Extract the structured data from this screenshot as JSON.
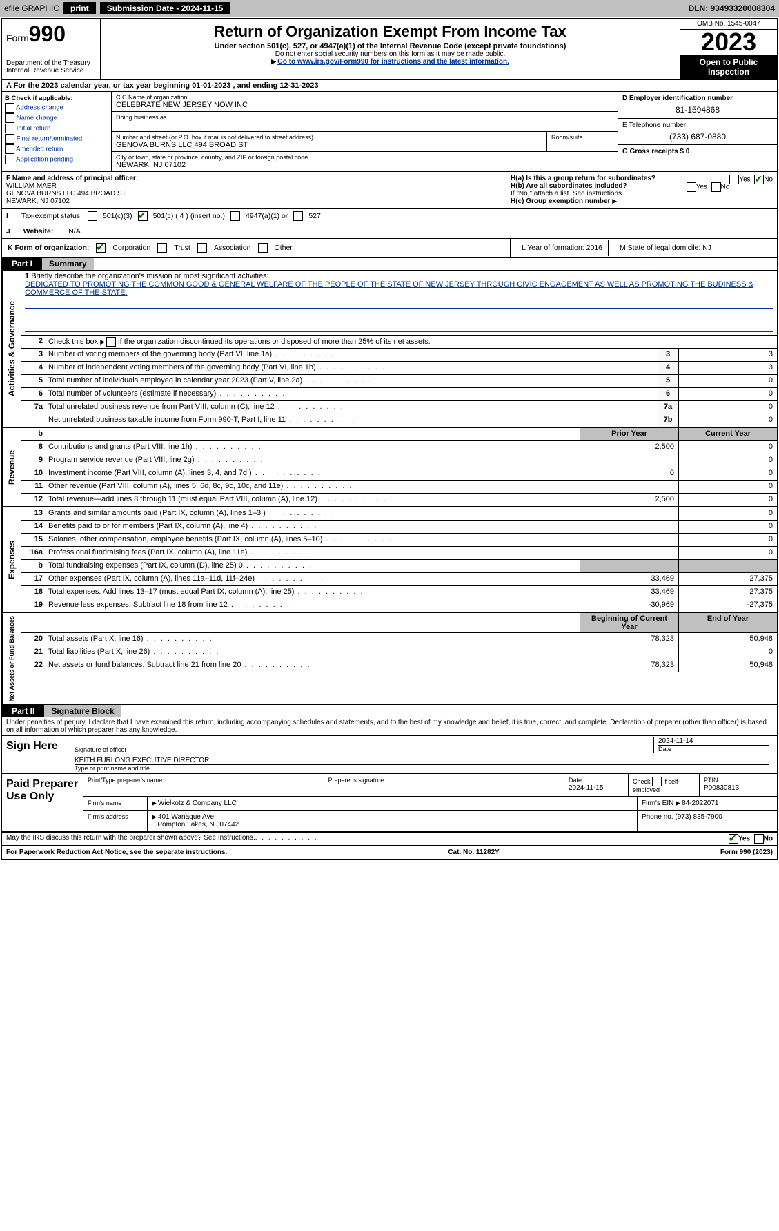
{
  "topbar": {
    "efile": "efile GRAPHIC",
    "print": "print",
    "submission": "Submission Date - 2024-11-15",
    "dln": "DLN: 93493320008304"
  },
  "header": {
    "form_label": "Form",
    "form_number": "990",
    "dept1": "Department of the Treasury",
    "dept2": "Internal Revenue Service",
    "title": "Return of Organization Exempt From Income Tax",
    "subtitle": "Under section 501(c), 527, or 4947(a)(1) of the Internal Revenue Code (except private foundations)",
    "warn": "Do not enter social security numbers on this form as it may be made public.",
    "goto": "Go to www.irs.gov/Form990 for instructions and the latest information.",
    "omb": "OMB No. 1545-0047",
    "year": "2023",
    "open": "Open to Public Inspection"
  },
  "row_a": "A For the 2023 calendar year, or tax year beginning 01-01-2023   , and ending 12-31-2023",
  "box_b": {
    "title": "B Check if applicable:",
    "opts": [
      "Address change",
      "Name change",
      "Initial return",
      "Final return/terminated",
      "Amended return",
      "Application pending"
    ]
  },
  "box_c": {
    "name_lbl": "C Name of organization",
    "name_val": "CELEBRATE NEW JERSEY NOW INC",
    "dba_lbl": "Doing business as",
    "addr_lbl": "Number and street (or P.O. box if mail is not delivered to street address)",
    "addr_val": "GENOVA BURNS LLC 494 BROAD ST",
    "room_lbl": "Room/suite",
    "city_lbl": "City or town, state or province, country, and ZIP or foreign postal code",
    "city_val": "NEWARK, NJ  07102"
  },
  "box_d": {
    "lbl": "D Employer identification number",
    "val": "81-1594868"
  },
  "box_e": {
    "lbl": "E Telephone number",
    "val": "(733) 687-0880"
  },
  "box_g": {
    "lbl": "G Gross receipts $ 0"
  },
  "box_f": {
    "lbl": "F Name and address of principal officer:",
    "l1": "WILLIAM MAER",
    "l2": "GENOVA BURNS LLC 494 BROAD ST",
    "l3": "NEWARK, NJ  07102"
  },
  "box_h": {
    "a": "H(a) Is this a group return for subordinates?",
    "b": "H(b) Are all subordinates included?",
    "note": "If \"No,\" attach a list. See instructions.",
    "c": "H(c) Group exemption number",
    "yes": "Yes",
    "no": "No"
  },
  "row_i": {
    "lbl": "Tax-exempt status:",
    "o1": "501(c)(3)",
    "o2": "501(c) ( 4 ) (insert no.)",
    "o3": "4947(a)(1) or",
    "o4": "527"
  },
  "row_j": {
    "lbl": "Website:",
    "val": "N/A"
  },
  "row_k": {
    "lbl": "K Form of organization:",
    "o1": "Corporation",
    "o2": "Trust",
    "o3": "Association",
    "o4": "Other"
  },
  "row_l": "L Year of formation: 2016",
  "row_m": "M State of legal domicile: NJ",
  "part1": {
    "label": "Part I",
    "title": "Summary"
  },
  "mission": {
    "q": "Briefly describe the organization's mission or most significant activities:",
    "text": "DEDICATED TO PROMOTING THE COMMON GOOD & GENERAL WELFARE OF THE PEOPLE OF THE STATE OF NEW JERSEY THROUGH CIVIC ENGAGEMENT AS WELL AS PROMOTING THE BUDINESS & COMMERCE OF THE STATE."
  },
  "line2": "Check this box      if the organization discontinued its operations or disposed of more than 25% of its net assets.",
  "gov_lines": [
    {
      "n": "3",
      "d": "Number of voting members of the governing body (Part VI, line 1a)",
      "b": "3",
      "v": "3"
    },
    {
      "n": "4",
      "d": "Number of independent voting members of the governing body (Part VI, line 1b)",
      "b": "4",
      "v": "3"
    },
    {
      "n": "5",
      "d": "Total number of individuals employed in calendar year 2023 (Part V, line 2a)",
      "b": "5",
      "v": "0"
    },
    {
      "n": "6",
      "d": "Total number of volunteers (estimate if necessary)",
      "b": "6",
      "v": "0"
    },
    {
      "n": "7a",
      "d": "Total unrelated business revenue from Part VIII, column (C), line 12",
      "b": "7a",
      "v": "0"
    },
    {
      "n": "",
      "d": "Net unrelated business taxable income from Form 990-T, Part I, line 11",
      "b": "7b",
      "v": "0"
    }
  ],
  "col_headers": {
    "b": "b",
    "prior": "Prior Year",
    "current": "Current Year"
  },
  "rev_lines": [
    {
      "n": "8",
      "d": "Contributions and grants (Part VIII, line 1h)",
      "p": "2,500",
      "c": "0"
    },
    {
      "n": "9",
      "d": "Program service revenue (Part VIII, line 2g)",
      "p": "",
      "c": "0"
    },
    {
      "n": "10",
      "d": "Investment income (Part VIII, column (A), lines 3, 4, and 7d )",
      "p": "0",
      "c": "0"
    },
    {
      "n": "11",
      "d": "Other revenue (Part VIII, column (A), lines 5, 6d, 8c, 9c, 10c, and 11e)",
      "p": "",
      "c": "0"
    },
    {
      "n": "12",
      "d": "Total revenue—add lines 8 through 11 (must equal Part VIII, column (A), line 12)",
      "p": "2,500",
      "c": "0"
    }
  ],
  "exp_lines": [
    {
      "n": "13",
      "d": "Grants and similar amounts paid (Part IX, column (A), lines 1–3 )",
      "p": "",
      "c": "0"
    },
    {
      "n": "14",
      "d": "Benefits paid to or for members (Part IX, column (A), line 4)",
      "p": "",
      "c": "0"
    },
    {
      "n": "15",
      "d": "Salaries, other compensation, employee benefits (Part IX, column (A), lines 5–10)",
      "p": "",
      "c": "0"
    },
    {
      "n": "16a",
      "d": "Professional fundraising fees (Part IX, column (A), line 11e)",
      "p": "",
      "c": "0"
    },
    {
      "n": "b",
      "d": "Total fundraising expenses (Part IX, column (D), line 25) 0",
      "p": "shade",
      "c": "shade"
    },
    {
      "n": "17",
      "d": "Other expenses (Part IX, column (A), lines 11a–11d, 11f–24e)",
      "p": "33,469",
      "c": "27,375"
    },
    {
      "n": "18",
      "d": "Total expenses. Add lines 13–17 (must equal Part IX, column (A), line 25)",
      "p": "33,469",
      "c": "27,375"
    },
    {
      "n": "19",
      "d": "Revenue less expenses. Subtract line 18 from line 12",
      "p": "-30,969",
      "c": "-27,375"
    }
  ],
  "na_headers": {
    "beg": "Beginning of Current Year",
    "end": "End of Year"
  },
  "na_lines": [
    {
      "n": "20",
      "d": "Total assets (Part X, line 16)",
      "p": "78,323",
      "c": "50,948"
    },
    {
      "n": "21",
      "d": "Total liabilities (Part X, line 26)",
      "p": "",
      "c": "0"
    },
    {
      "n": "22",
      "d": "Net assets or fund balances. Subtract line 21 from line 20",
      "p": "78,323",
      "c": "50,948"
    }
  ],
  "vert": {
    "gov": "Activities & Governance",
    "rev": "Revenue",
    "exp": "Expenses",
    "na": "Net Assets or Fund Balances"
  },
  "part2": {
    "label": "Part II",
    "title": "Signature Block"
  },
  "penalties": "Under penalties of perjury, I declare that I have examined this return, including accompanying schedules and statements, and to the best of my knowledge and belief, it is true, correct, and complete. Declaration of preparer (other than officer) is based on all information of which preparer has any knowledge.",
  "sign": {
    "here": "Sign Here",
    "sig_lbl": "Signature of officer",
    "date_lbl": "Date",
    "date_val": "2024-11-14",
    "name": "KEITH FURLONG  EXECUTIVE DIRECTOR",
    "type_lbl": "Type or print name and title"
  },
  "prep": {
    "title": "Paid Preparer Use Only",
    "name_lbl": "Print/Type preparer's name",
    "sig_lbl": "Preparer's signature",
    "date_lbl": "Date",
    "date_val": "2024-11-15",
    "check_lbl": "Check      if self-employed",
    "ptin_lbl": "PTIN",
    "ptin_val": "P00830813",
    "firm_lbl": "Firm's name",
    "firm_val": "Wielkotz & Company LLC",
    "ein_lbl": "Firm's EIN",
    "ein_val": "84-2022071",
    "addr_lbl": "Firm's address",
    "addr_val": "401 Wanaque Ave",
    "addr_val2": "Pompton Lakes, NJ  07442",
    "phone_lbl": "Phone no.",
    "phone_val": "(973) 835-7900"
  },
  "discuss": "May the IRS discuss this return with the preparer shown above? See Instructions.",
  "footer": {
    "left": "For Paperwork Reduction Act Notice, see the separate instructions.",
    "mid": "Cat. No. 11282Y",
    "right": "Form 990 (2023)"
  }
}
